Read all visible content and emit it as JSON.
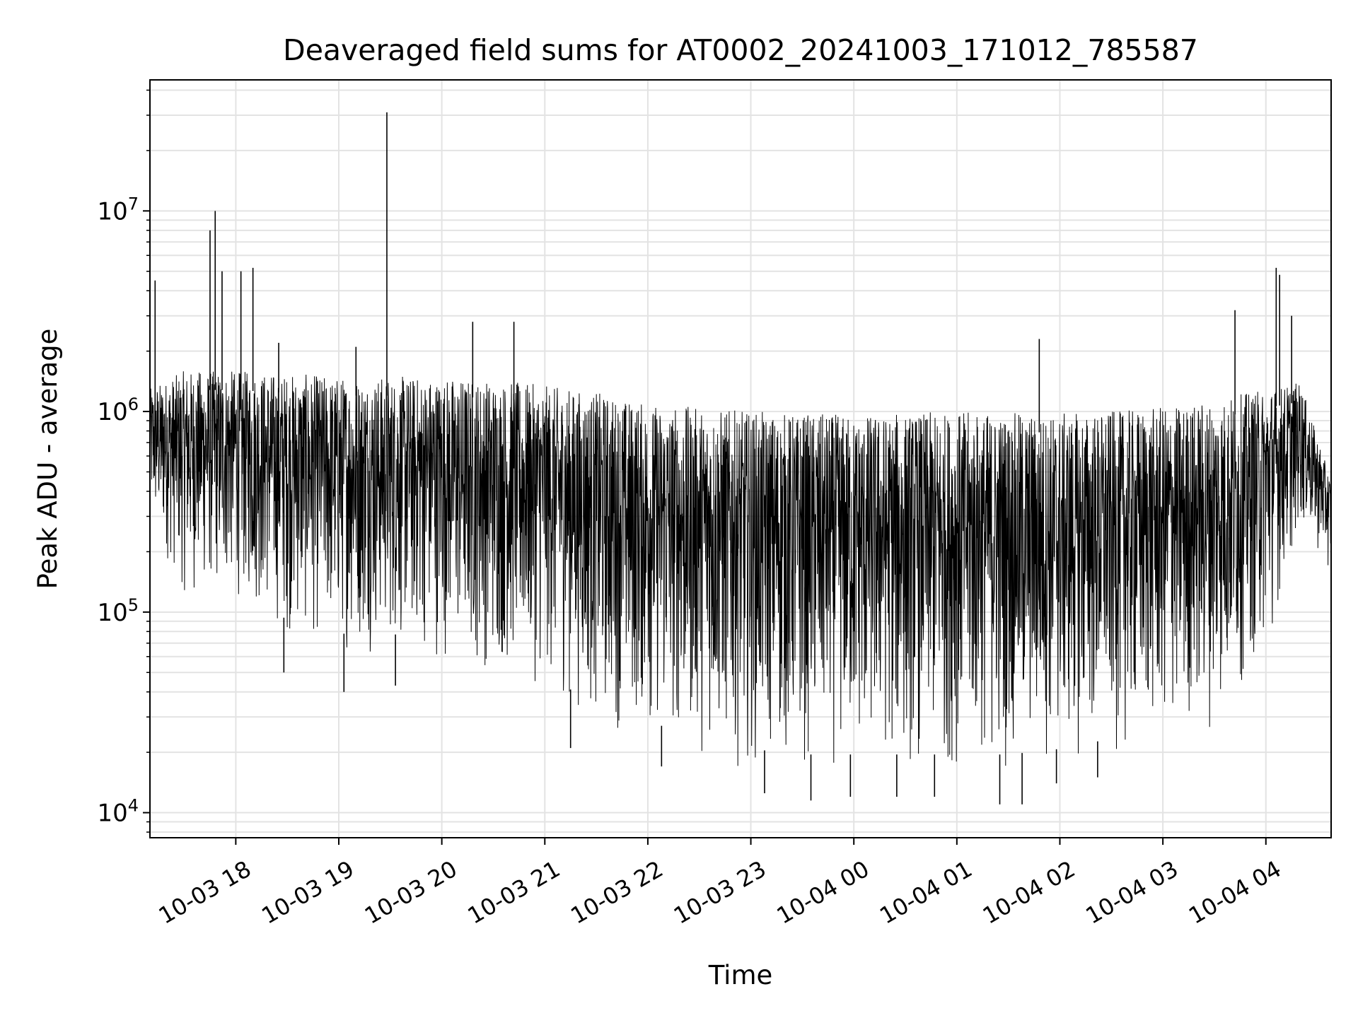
{
  "chart_data": {
    "type": "line",
    "title": "Deaveraged field sums for AT0002_20241003_171012_785587",
    "xlabel": "Time",
    "ylabel": "Peak ADU - average",
    "y_scale": "log",
    "ylim": [
      7500,
      45000000
    ],
    "xlim": [
      "2024-10-03 17:10",
      "2024-10-04 04:38"
    ],
    "x_ticks": [
      {
        "x": "2024-10-03 18:00",
        "label": "10-03 18"
      },
      {
        "x": "2024-10-03 19:00",
        "label": "10-03 19"
      },
      {
        "x": "2024-10-03 20:00",
        "label": "10-03 20"
      },
      {
        "x": "2024-10-03 21:00",
        "label": "10-03 21"
      },
      {
        "x": "2024-10-03 22:00",
        "label": "10-03 22"
      },
      {
        "x": "2024-10-03 23:00",
        "label": "10-03 23"
      },
      {
        "x": "2024-10-04 00:00",
        "label": "10-04 00"
      },
      {
        "x": "2024-10-04 01:00",
        "label": "10-04 01"
      },
      {
        "x": "2024-10-04 02:00",
        "label": "10-04 02"
      },
      {
        "x": "2024-10-04 03:00",
        "label": "10-04 03"
      },
      {
        "x": "2024-10-04 04:00",
        "label": "10-04 04"
      }
    ],
    "y_ticks": [
      {
        "y": 10000,
        "base": "10",
        "exp": "4"
      },
      {
        "y": 100000,
        "base": "10",
        "exp": "5"
      },
      {
        "y": 1000000,
        "base": "10",
        "exp": "6"
      },
      {
        "y": 10000000,
        "base": "10",
        "exp": "7"
      }
    ],
    "grid": true,
    "series_color": "#000000",
    "envelope": {
      "x": [
        "2024-10-03 17:10",
        "2024-10-03 17:30",
        "2024-10-03 18:00",
        "2024-10-03 18:30",
        "2024-10-03 19:00",
        "2024-10-03 19:30",
        "2024-10-03 20:00",
        "2024-10-03 20:30",
        "2024-10-03 21:00",
        "2024-10-03 21:30",
        "2024-10-03 22:00",
        "2024-10-03 22:30",
        "2024-10-03 23:00",
        "2024-10-03 23:30",
        "2024-10-04 00:00",
        "2024-10-04 00:30",
        "2024-10-04 01:00",
        "2024-10-04 01:30",
        "2024-10-04 02:00",
        "2024-10-04 02:30",
        "2024-10-04 03:00",
        "2024-10-04 03:30",
        "2024-10-04 04:00",
        "2024-10-04 04:20",
        "2024-10-04 04:38"
      ],
      "upper": [
        1300000,
        1600000,
        1600000,
        1550000,
        1500000,
        1500000,
        1500000,
        1450000,
        1350000,
        1250000,
        1100000,
        1050000,
        1000000,
        980000,
        970000,
        980000,
        1000000,
        990000,
        980000,
        1000000,
        1050000,
        1150000,
        1300000,
        1400000,
        450000
      ],
      "lower": [
        250000,
        110000,
        110000,
        70000,
        60000,
        60000,
        55000,
        45000,
        40000,
        25000,
        22000,
        18000,
        16000,
        15000,
        15000,
        15000,
        15000,
        15000,
        16000,
        18000,
        20000,
        25000,
        60000,
        250000,
        150000
      ]
    },
    "peaks": [
      {
        "x": "2024-10-03 17:13",
        "y": 4500000
      },
      {
        "x": "2024-10-03 17:45",
        "y": 8000000
      },
      {
        "x": "2024-10-03 17:48",
        "y": 10000000
      },
      {
        "x": "2024-10-03 17:52",
        "y": 5000000
      },
      {
        "x": "2024-10-03 18:03",
        "y": 5000000
      },
      {
        "x": "2024-10-03 18:10",
        "y": 5200000
      },
      {
        "x": "2024-10-03 18:25",
        "y": 2200000
      },
      {
        "x": "2024-10-03 19:10",
        "y": 2100000
      },
      {
        "x": "2024-10-03 19:28",
        "y": 31000000
      },
      {
        "x": "2024-10-03 20:18",
        "y": 2800000
      },
      {
        "x": "2024-10-03 20:42",
        "y": 2800000
      },
      {
        "x": "2024-10-04 01:48",
        "y": 2300000
      },
      {
        "x": "2024-10-04 03:42",
        "y": 3200000
      },
      {
        "x": "2024-10-04 04:06",
        "y": 5200000
      },
      {
        "x": "2024-10-04 04:08",
        "y": 4800000
      },
      {
        "x": "2024-10-04 04:15",
        "y": 3000000
      }
    ],
    "dips": [
      {
        "x": "2024-10-03 18:28",
        "y": 50000
      },
      {
        "x": "2024-10-03 19:03",
        "y": 40000
      },
      {
        "x": "2024-10-03 19:33",
        "y": 43000
      },
      {
        "x": "2024-10-03 21:15",
        "y": 21000
      },
      {
        "x": "2024-10-03 22:08",
        "y": 17000
      },
      {
        "x": "2024-10-03 23:08",
        "y": 12500
      },
      {
        "x": "2024-10-03 23:35",
        "y": 11500
      },
      {
        "x": "2024-10-03 23:58",
        "y": 12000
      },
      {
        "x": "2024-10-04 00:25",
        "y": 12000
      },
      {
        "x": "2024-10-04 00:47",
        "y": 12000
      },
      {
        "x": "2024-10-04 01:25",
        "y": 11000
      },
      {
        "x": "2024-10-04 01:38",
        "y": 11000
      },
      {
        "x": "2024-10-04 01:58",
        "y": 14000
      },
      {
        "x": "2024-10-04 02:22",
        "y": 15000
      }
    ]
  }
}
